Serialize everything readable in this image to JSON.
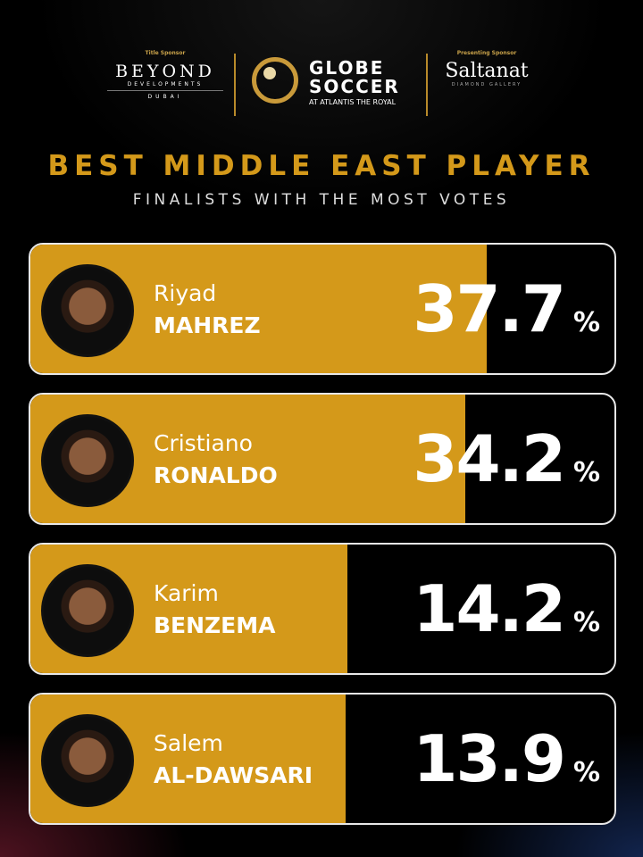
{
  "sponsors": {
    "title_sponsor_label": "Title Sponsor",
    "title_sponsor_name": "BEYOND",
    "title_sponsor_line2": "DEVELOPMENTS",
    "title_sponsor_line3": "DUBAI",
    "main_brand_line1": "GLOBE",
    "main_brand_line2": "SOCCER",
    "main_brand_sub": "AT ATLANTIS THE ROYAL",
    "presenting_sponsor_label": "Presenting Sponsor",
    "presenting_sponsor_name": "Saltanat",
    "presenting_sponsor_sub": "DIAMOND GALLERY"
  },
  "colors": {
    "accent": "#d4991a",
    "background": "#000000"
  },
  "chart_data": {
    "type": "bar",
    "title": "BEST MIDDLE EAST PLAYER",
    "subtitle": "FINALISTS WITH THE MOST VOTES",
    "unit": "%",
    "categories": [
      "Riyad MAHREZ",
      "Cristiano RONALDO",
      "Karim BENZEMA",
      "Salem AL-DAWSARI"
    ],
    "values": [
      37.7,
      34.2,
      14.2,
      13.9
    ],
    "players": [
      {
        "first": "Riyad",
        "last": "MAHREZ",
        "value": "37.7"
      },
      {
        "first": "Cristiano",
        "last": "RONALDO",
        "value": "34.2"
      },
      {
        "first": "Karim",
        "last": "BENZEMA",
        "value": "14.2"
      },
      {
        "first": "Salem",
        "last": "AL-DAWSARI",
        "value": "13.9"
      }
    ]
  }
}
